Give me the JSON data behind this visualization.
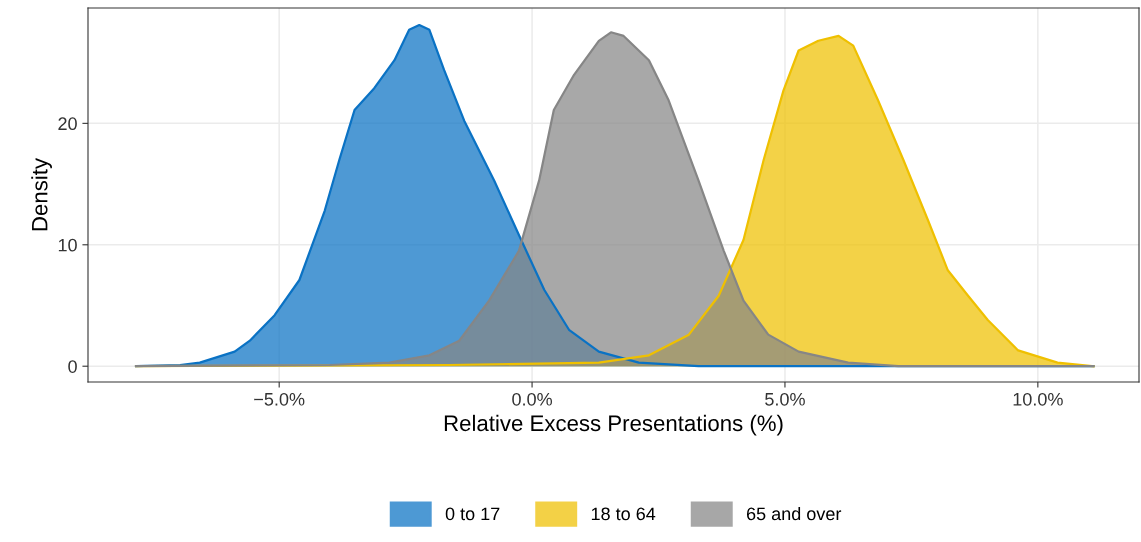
{
  "chart_data": {
    "type": "area",
    "xlabel": "Relative Excess Presentations (%)",
    "ylabel": "Density",
    "xlim": [
      -8.78,
      12.0
    ],
    "ylim": [
      -1.3,
      29.5
    ],
    "xticks": [
      {
        "value": -5,
        "label": "−5.0%"
      },
      {
        "value": 0,
        "label": "0.0%"
      },
      {
        "value": 5,
        "label": "5.0%"
      },
      {
        "value": 10,
        "label": "10.0%"
      }
    ],
    "yticks": [
      0,
      10,
      20
    ],
    "grid": true,
    "legend": "bottom",
    "series": [
      {
        "name": "0 to 17",
        "color": "#0a72c4",
        "x": [
          -7.83,
          -6.96,
          -6.57,
          -5.88,
          -5.58,
          -5.09,
          -4.6,
          -4.1,
          -3.81,
          -3.51,
          -3.12,
          -2.72,
          -2.43,
          -2.23,
          -2.03,
          -1.74,
          -1.34,
          -0.75,
          -0.26,
          0.24,
          0.73,
          1.32,
          2.11,
          3.29,
          11.1
        ],
        "values": [
          0,
          0.1,
          0.3,
          1.2,
          2.1,
          4.2,
          7.1,
          12.8,
          17,
          21.1,
          22.9,
          25.2,
          27.7,
          28.1,
          27.7,
          24.4,
          20.2,
          15.3,
          10.8,
          6.3,
          3.0,
          1.2,
          0.3,
          0,
          0
        ]
      },
      {
        "name": "18 to 64",
        "color": "#efc000",
        "x": [
          -7.83,
          -1.64,
          1.32,
          2.31,
          3.1,
          3.69,
          4.18,
          4.58,
          4.97,
          5.27,
          5.66,
          6.06,
          6.35,
          6.84,
          7.34,
          7.83,
          8.22,
          8.62,
          9.01,
          9.61,
          10.39,
          11.1
        ],
        "values": [
          0,
          0.1,
          0.3,
          0.9,
          2.6,
          5.8,
          10.4,
          17,
          22.7,
          26,
          26.8,
          27.2,
          26.4,
          21.9,
          17,
          12,
          7.9,
          5.8,
          3.8,
          1.3,
          0.3,
          0
        ]
      },
      {
        "name": "65 and over",
        "color": "#868686",
        "x": [
          -7.83,
          -4.0,
          -2.82,
          -2.03,
          -1.44,
          -0.85,
          -0.26,
          0.14,
          0.43,
          0.83,
          1.32,
          1.56,
          1.81,
          2.31,
          2.7,
          3.29,
          3.79,
          4.18,
          4.67,
          5.27,
          6.25,
          7.24,
          11.1
        ],
        "values": [
          0,
          0.1,
          0.3,
          0.9,
          2.1,
          5.4,
          9.5,
          15.3,
          21.1,
          24,
          26.8,
          27.5,
          27.2,
          25.2,
          21.9,
          15.3,
          9.5,
          5.4,
          2.6,
          1.2,
          0.3,
          0,
          0
        ]
      }
    ]
  }
}
